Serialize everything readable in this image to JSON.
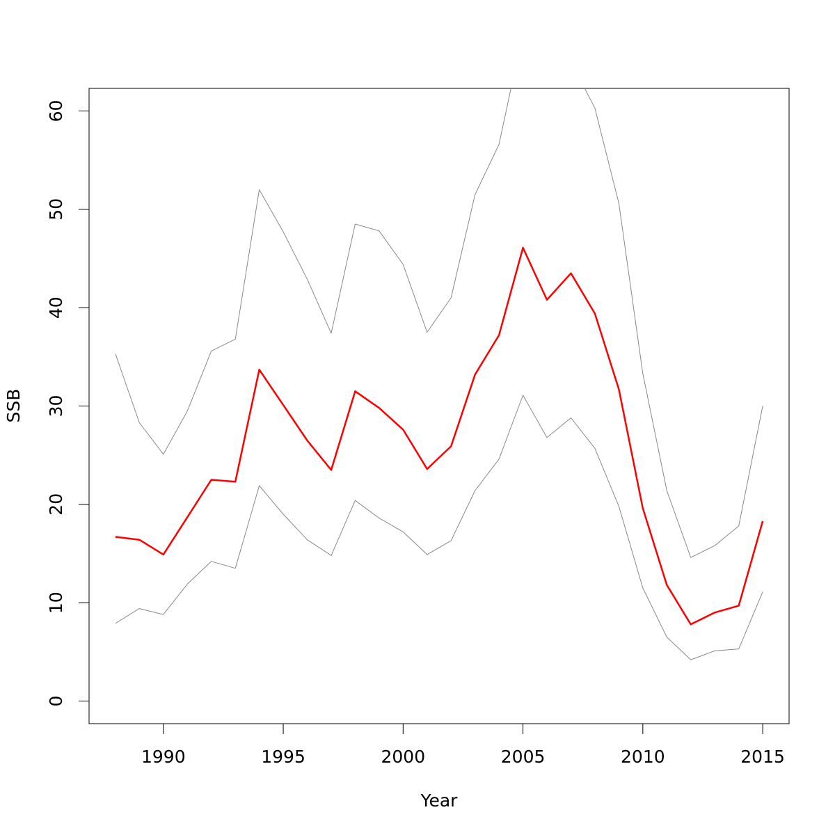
{
  "chart_data": {
    "type": "line",
    "title": "",
    "xlabel": "Year",
    "ylabel": "SSB",
    "xlim": [
      1986.9,
      2016.1
    ],
    "ylim": [
      -2.3,
      62.3
    ],
    "xticks": [
      1990,
      1995,
      2000,
      2005,
      2010,
      2015
    ],
    "xtick_labels": [
      "1990",
      "1995",
      "2000",
      "2005",
      "2010",
      "2015"
    ],
    "yticks": [
      0,
      10,
      20,
      30,
      40,
      50,
      60
    ],
    "ytick_labels": [
      "0",
      "10",
      "20",
      "30",
      "40",
      "50",
      "60"
    ],
    "grid": false,
    "legend": "none",
    "x": [
      1988,
      1989,
      1990,
      1991,
      1992,
      1993,
      1994,
      1995,
      1996,
      1997,
      1998,
      1999,
      2000,
      2001,
      2002,
      2003,
      2004,
      2005,
      2006,
      2007,
      2008,
      2009,
      2010,
      2011,
      2012,
      2013,
      2014,
      2015
    ],
    "series": [
      {
        "role": "upper",
        "color": "#888888",
        "values": [
          35.3,
          28.3,
          25.1,
          29.5,
          35.6,
          36.8,
          52.0,
          47.7,
          42.9,
          37.4,
          48.5,
          47.8,
          44.4,
          37.5,
          41.0,
          51.5,
          56.6,
          68.0,
          62.5,
          65.0,
          60.3,
          50.6,
          33.3,
          21.4,
          14.6,
          15.8,
          17.8,
          30.0
        ]
      },
      {
        "role": "estimate",
        "color": "#ff0000",
        "values": [
          16.7,
          16.4,
          14.9,
          18.7,
          22.5,
          22.3,
          33.7,
          30.1,
          26.5,
          23.5,
          31.5,
          29.8,
          27.6,
          23.6,
          25.9,
          33.2,
          37.2,
          46.1,
          40.8,
          43.5,
          39.4,
          31.7,
          19.6,
          11.8,
          7.8,
          9.0,
          9.7,
          18.3
        ]
      },
      {
        "role": "lower",
        "color": "#888888",
        "values": [
          7.9,
          9.4,
          8.8,
          11.9,
          14.2,
          13.5,
          21.9,
          19.0,
          16.4,
          14.8,
          20.4,
          18.6,
          17.2,
          14.9,
          16.3,
          21.4,
          24.6,
          31.1,
          26.8,
          28.8,
          25.7,
          19.8,
          11.5,
          6.5,
          4.2,
          5.1,
          5.3,
          11.1
        ]
      }
    ]
  }
}
